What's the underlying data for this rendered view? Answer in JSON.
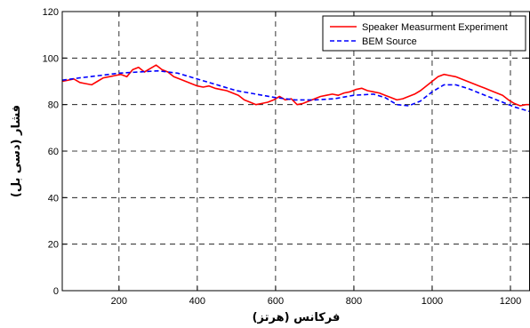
{
  "chart_data": {
    "type": "line",
    "title": "",
    "xlabel": "فرکانس (هرتز)",
    "ylabel": "فشار (دسی بل)",
    "xlim": [
      55,
      1250
    ],
    "ylim": [
      0,
      120
    ],
    "xticks": [
      200,
      400,
      600,
      800,
      1000,
      1200
    ],
    "yticks": [
      0,
      20,
      40,
      60,
      80,
      100,
      120
    ],
    "grid": true,
    "legend_position": "top-right",
    "series": [
      {
        "name": "Speaker Measurment Experiment",
        "color": "#ff0000",
        "style": "solid",
        "x": [
          55,
          70,
          85,
          100,
          115,
          130,
          145,
          160,
          175,
          190,
          205,
          220,
          235,
          250,
          265,
          280,
          295,
          310,
          325,
          340,
          355,
          370,
          385,
          400,
          415,
          430,
          445,
          460,
          475,
          490,
          505,
          520,
          535,
          550,
          565,
          580,
          595,
          610,
          625,
          640,
          655,
          670,
          685,
          700,
          715,
          730,
          745,
          760,
          775,
          790,
          805,
          820,
          835,
          850,
          865,
          880,
          895,
          910,
          925,
          940,
          955,
          970,
          985,
          1000,
          1015,
          1030,
          1045,
          1060,
          1075,
          1090,
          1105,
          1120,
          1135,
          1150,
          1165,
          1180,
          1195,
          1210,
          1225,
          1240,
          1250
        ],
        "y": [
          90,
          90.5,
          91,
          89.5,
          89,
          88.5,
          90,
          91.5,
          92,
          92.5,
          93,
          92,
          95,
          96,
          94,
          95.5,
          97,
          95,
          94,
          92,
          91,
          90,
          89,
          88,
          87.5,
          88,
          87,
          86.5,
          86,
          85,
          84,
          82,
          81,
          80,
          80.5,
          81,
          82,
          83.5,
          82,
          82.5,
          80,
          80.5,
          81.5,
          82.5,
          83.5,
          84,
          84.5,
          84,
          85,
          85.5,
          86.5,
          87,
          86,
          85.5,
          85,
          84,
          83,
          82,
          82.5,
          83.5,
          84.5,
          86,
          88,
          90,
          92,
          93,
          92.5,
          92,
          91,
          90,
          89,
          88,
          87,
          86,
          85,
          84,
          82,
          80.5,
          79.5,
          80,
          80
        ]
      },
      {
        "name": "BEM Source",
        "color": "#0000ff",
        "style": "dashed",
        "x": [
          55,
          100,
          150,
          200,
          250,
          300,
          350,
          400,
          450,
          500,
          550,
          600,
          650,
          700,
          750,
          800,
          850,
          880,
          910,
          940,
          970,
          1000,
          1030,
          1060,
          1090,
          1120,
          1150,
          1180,
          1210,
          1250
        ],
        "y": [
          90.5,
          91.5,
          92.5,
          93.5,
          94,
          94.5,
          93.5,
          91,
          88.5,
          86,
          84.5,
          83,
          82,
          82,
          82.5,
          84,
          84.5,
          83,
          80,
          79.5,
          81.5,
          85.5,
          88.5,
          88.5,
          87,
          85,
          83,
          81,
          79,
          77
        ]
      }
    ]
  }
}
